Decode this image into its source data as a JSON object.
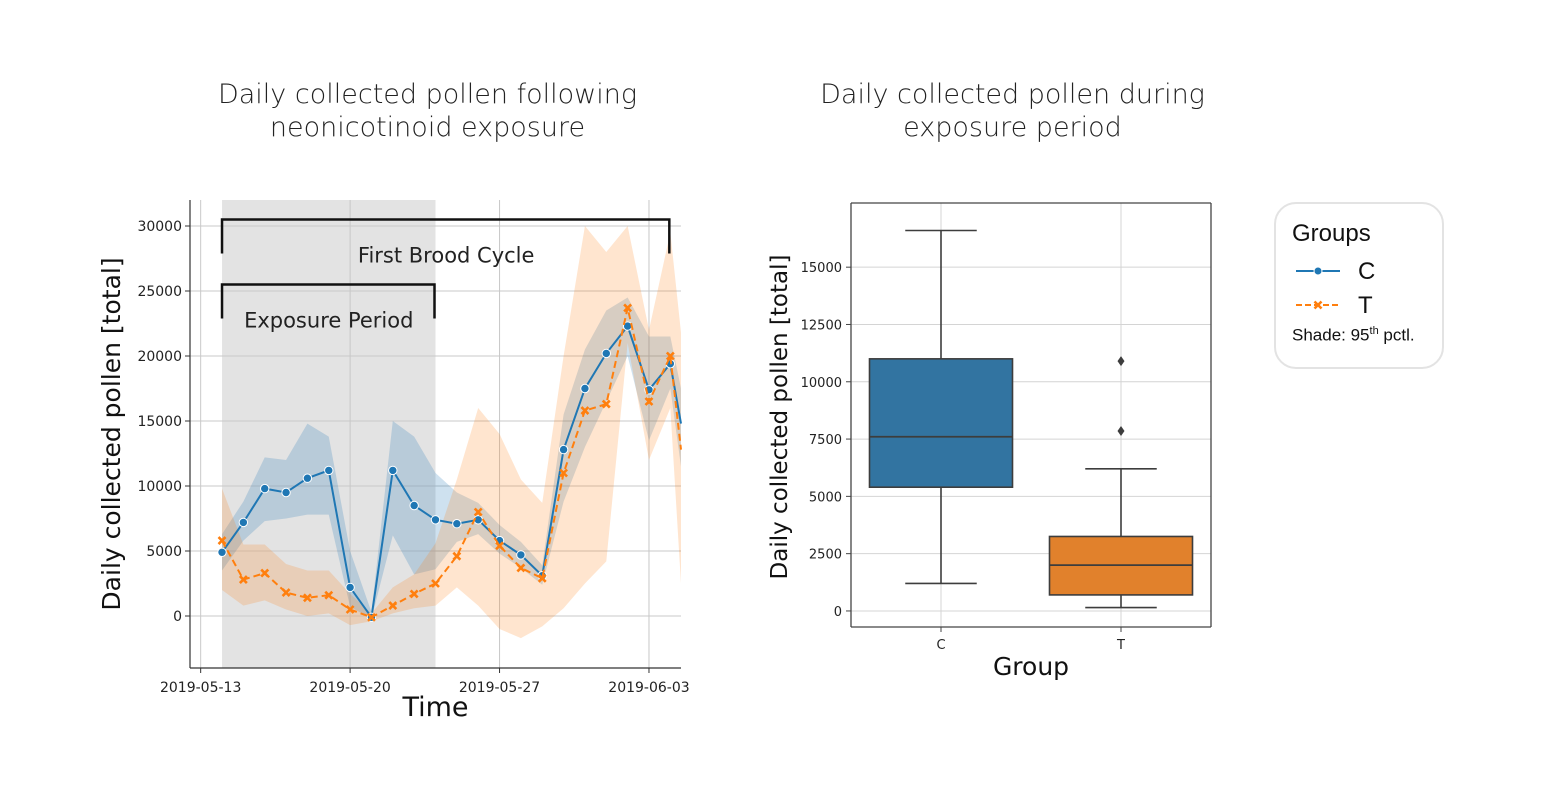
{
  "titles": {
    "left": "Daily collected pollen following neonicotinoid exposure",
    "right": "Daily collected pollen during exposure period"
  },
  "legend": {
    "title": "Groups",
    "entries": [
      {
        "label": "C",
        "color": "#1f77b4",
        "marker": "circle",
        "line": "solid"
      },
      {
        "label": "T",
        "color": "#ff7f0e",
        "marker": "x",
        "line": "dashed"
      }
    ],
    "note_prefix": "Shade: 95",
    "note_sup": "th",
    "note_suffix": " pctl."
  },
  "chart_data": [
    {
      "type": "line",
      "xlabel": "Time",
      "ylabel": "Daily collected pollen [total]",
      "ylim": [
        -4000,
        32000
      ],
      "yticks": [
        0,
        5000,
        10000,
        15000,
        20000,
        25000,
        30000
      ],
      "xlim": [
        "2019-05-12 12:00",
        "2019-06-04 12:00"
      ],
      "xticks": [
        "2019-05-13",
        "2019-05-20",
        "2019-05-27",
        "2019-06-03"
      ],
      "grid": true,
      "shaded_region": {
        "from": "2019-05-14",
        "to": "2019-05-24",
        "color": "#e3e3e3"
      },
      "brackets": [
        {
          "label": "First Brood Cycle",
          "from": "2019-05-14",
          "to": "2019-06-04",
          "y": 30500
        },
        {
          "label": "Exposure Period",
          "from": "2019-05-14",
          "to": "2019-05-24",
          "y": 25500
        }
      ],
      "x": [
        "2019-05-14",
        "2019-05-15",
        "2019-05-16",
        "2019-05-17",
        "2019-05-18",
        "2019-05-19",
        "2019-05-20",
        "2019-05-21",
        "2019-05-22",
        "2019-05-23",
        "2019-05-24",
        "2019-05-25",
        "2019-05-26",
        "2019-05-27",
        "2019-05-28",
        "2019-05-29",
        "2019-05-30",
        "2019-05-31",
        "2019-06-01",
        "2019-06-02",
        "2019-06-03",
        "2019-06-04"
      ],
      "series": [
        {
          "name": "C",
          "color": "#1f77b4",
          "marker": "circle",
          "line": "solid",
          "values": [
            4900,
            7200,
            9800,
            9500,
            10600,
            11200,
            2200,
            -100,
            11200,
            8500,
            7400,
            7100,
            7400,
            5800,
            4700,
            3100,
            12800,
            17500,
            20200,
            22300,
            17400,
            19400
          ],
          "ci_low": [
            3500,
            5800,
            7300,
            7500,
            7800,
            7800,
            700,
            -200,
            6200,
            3200,
            3600,
            5700,
            6300,
            4800,
            3700,
            2400,
            8800,
            13000,
            16500,
            20000,
            13500,
            17500
          ],
          "ci_high": [
            6300,
            8800,
            12200,
            12000,
            14800,
            13800,
            5000,
            300,
            15000,
            13800,
            11000,
            9500,
            8700,
            7000,
            5700,
            3900,
            15500,
            20500,
            23500,
            24500,
            21500,
            21500
          ]
        },
        {
          "name": "T",
          "color": "#ff7f0e",
          "marker": "x",
          "line": "dashed",
          "values": [
            5800,
            2800,
            3300,
            1800,
            1400,
            1600,
            500,
            -100,
            800,
            1700,
            2500,
            4600,
            8000,
            5400,
            3700,
            2900,
            11000,
            15800,
            16300,
            23700,
            16500,
            20000
          ],
          "ci_low": [
            2000,
            800,
            1200,
            500,
            0,
            200,
            -700,
            -400,
            200,
            600,
            800,
            2200,
            800,
            -1000,
            -1700,
            -800,
            600,
            2500,
            4200,
            21000,
            12000,
            16000
          ],
          "ci_high": [
            9800,
            5500,
            5500,
            4000,
            3500,
            3500,
            1700,
            200,
            2200,
            3200,
            5600,
            10500,
            16000,
            14000,
            10500,
            8700,
            20000,
            30000,
            28000,
            30000,
            22000,
            29500
          ]
        }
      ],
      "tail": {
        "x": "2019-06-04 12:00",
        "C": {
          "value": 14800,
          "ci_low": 11500,
          "ci_high": 17500
        },
        "T": {
          "value": 12800,
          "ci_low": 2500,
          "ci_high": 21800
        }
      }
    },
    {
      "type": "box",
      "xlabel": "Group",
      "ylabel": "Daily collected pollen [total]",
      "ylim": [
        -700,
        17800
      ],
      "yticks": [
        0,
        2500,
        5000,
        7500,
        10000,
        12500,
        15000
      ],
      "categories": [
        "C",
        "T"
      ],
      "grid": true,
      "boxes": [
        {
          "name": "C",
          "color": "#3274a1",
          "whisker_low": 1200,
          "q1": 5400,
          "median": 7600,
          "q3": 11000,
          "whisker_high": 16600,
          "outliers": []
        },
        {
          "name": "T",
          "color": "#e1812c",
          "whisker_low": 150,
          "q1": 700,
          "median": 2000,
          "q3": 3250,
          "whisker_high": 6200,
          "outliers": [
            7850,
            10900
          ]
        }
      ]
    }
  ]
}
